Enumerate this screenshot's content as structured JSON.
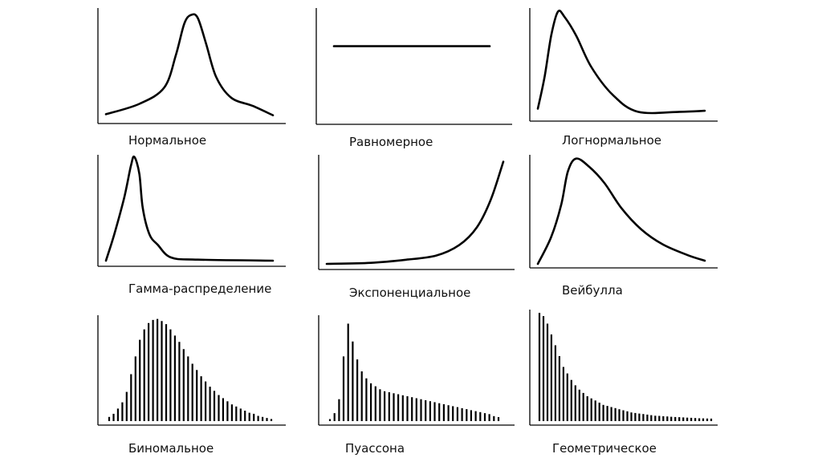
{
  "chart_data": {
    "type": "diagram",
    "title": "",
    "panels": [
      {
        "id": "normal",
        "label": "Нормальное",
        "kind": "curve",
        "points": [
          [
            0.0,
            0.02
          ],
          [
            0.2,
            0.12
          ],
          [
            0.35,
            0.28
          ],
          [
            0.42,
            0.6
          ],
          [
            0.47,
            0.9
          ],
          [
            0.51,
            0.98
          ],
          [
            0.55,
            0.95
          ],
          [
            0.6,
            0.7
          ],
          [
            0.66,
            0.38
          ],
          [
            0.75,
            0.18
          ],
          [
            0.88,
            0.1
          ],
          [
            1.0,
            0.01
          ]
        ]
      },
      {
        "id": "uniform",
        "label": "Равномерное",
        "kind": "curve",
        "points": [
          [
            0.0,
            0.65
          ],
          [
            1.0,
            0.65
          ]
        ]
      },
      {
        "id": "lognormal",
        "label": "Логнормальное",
        "kind": "curve",
        "points": [
          [
            0.0,
            0.05
          ],
          [
            0.04,
            0.35
          ],
          [
            0.08,
            0.75
          ],
          [
            0.12,
            0.98
          ],
          [
            0.16,
            0.93
          ],
          [
            0.23,
            0.75
          ],
          [
            0.32,
            0.45
          ],
          [
            0.45,
            0.18
          ],
          [
            0.6,
            0.02
          ],
          [
            0.85,
            0.02
          ],
          [
            1.0,
            0.03
          ]
        ]
      },
      {
        "id": "gamma",
        "label": "Гамма-распределение",
        "kind": "curve",
        "points": [
          [
            0.0,
            0.0
          ],
          [
            0.05,
            0.25
          ],
          [
            0.11,
            0.6
          ],
          [
            0.15,
            0.9
          ],
          [
            0.17,
            0.98
          ],
          [
            0.2,
            0.82
          ],
          [
            0.22,
            0.5
          ],
          [
            0.26,
            0.25
          ],
          [
            0.31,
            0.15
          ],
          [
            0.39,
            0.03
          ],
          [
            0.55,
            0.01
          ],
          [
            1.0,
            0.0
          ]
        ]
      },
      {
        "id": "exponential",
        "label": "Экспоненциальное",
        "kind": "curve",
        "points": [
          [
            0.0,
            0.0
          ],
          [
            0.25,
            0.01
          ],
          [
            0.45,
            0.04
          ],
          [
            0.62,
            0.08
          ],
          [
            0.75,
            0.18
          ],
          [
            0.85,
            0.35
          ],
          [
            0.93,
            0.62
          ],
          [
            1.0,
            0.98
          ]
        ]
      },
      {
        "id": "weibull",
        "label": "Вейбулла",
        "kind": "curve",
        "points": [
          [
            0.0,
            0.0
          ],
          [
            0.08,
            0.25
          ],
          [
            0.14,
            0.55
          ],
          [
            0.18,
            0.86
          ],
          [
            0.23,
            0.98
          ],
          [
            0.31,
            0.9
          ],
          [
            0.4,
            0.75
          ],
          [
            0.5,
            0.52
          ],
          [
            0.62,
            0.32
          ],
          [
            0.75,
            0.18
          ],
          [
            0.9,
            0.08
          ],
          [
            1.0,
            0.03
          ]
        ]
      },
      {
        "id": "binomial",
        "label": "Биномальное",
        "kind": "bars",
        "values": [
          0.04,
          0.07,
          0.12,
          0.18,
          0.28,
          0.45,
          0.62,
          0.78,
          0.88,
          0.94,
          0.97,
          0.98,
          0.96,
          0.93,
          0.88,
          0.82,
          0.76,
          0.69,
          0.62,
          0.55,
          0.49,
          0.43,
          0.38,
          0.33,
          0.29,
          0.25,
          0.22,
          0.19,
          0.16,
          0.14,
          0.12,
          0.1,
          0.08,
          0.07,
          0.05,
          0.04,
          0.03,
          0.02
        ]
      },
      {
        "id": "poisson",
        "label": "Пуассона",
        "kind": "bars",
        "values": [
          0.02,
          0.08,
          0.22,
          0.65,
          0.98,
          0.8,
          0.62,
          0.5,
          0.43,
          0.38,
          0.35,
          0.32,
          0.3,
          0.29,
          0.28,
          0.27,
          0.26,
          0.25,
          0.24,
          0.23,
          0.22,
          0.21,
          0.2,
          0.19,
          0.18,
          0.17,
          0.16,
          0.15,
          0.14,
          0.13,
          0.12,
          0.11,
          0.1,
          0.09,
          0.08,
          0.07,
          0.05,
          0.04
        ]
      },
      {
        "id": "geometric",
        "label": "Геометрическое",
        "kind": "bars",
        "values": [
          1.0,
          0.97,
          0.9,
          0.8,
          0.7,
          0.6,
          0.5,
          0.44,
          0.38,
          0.33,
          0.29,
          0.26,
          0.23,
          0.21,
          0.19,
          0.17,
          0.15,
          0.14,
          0.13,
          0.12,
          0.11,
          0.1,
          0.09,
          0.08,
          0.075,
          0.07,
          0.065,
          0.06,
          0.055,
          0.05,
          0.048,
          0.045,
          0.043,
          0.04,
          0.038,
          0.036,
          0.034,
          0.032,
          0.03,
          0.028,
          0.026,
          0.025,
          0.024,
          0.023
        ]
      }
    ]
  }
}
